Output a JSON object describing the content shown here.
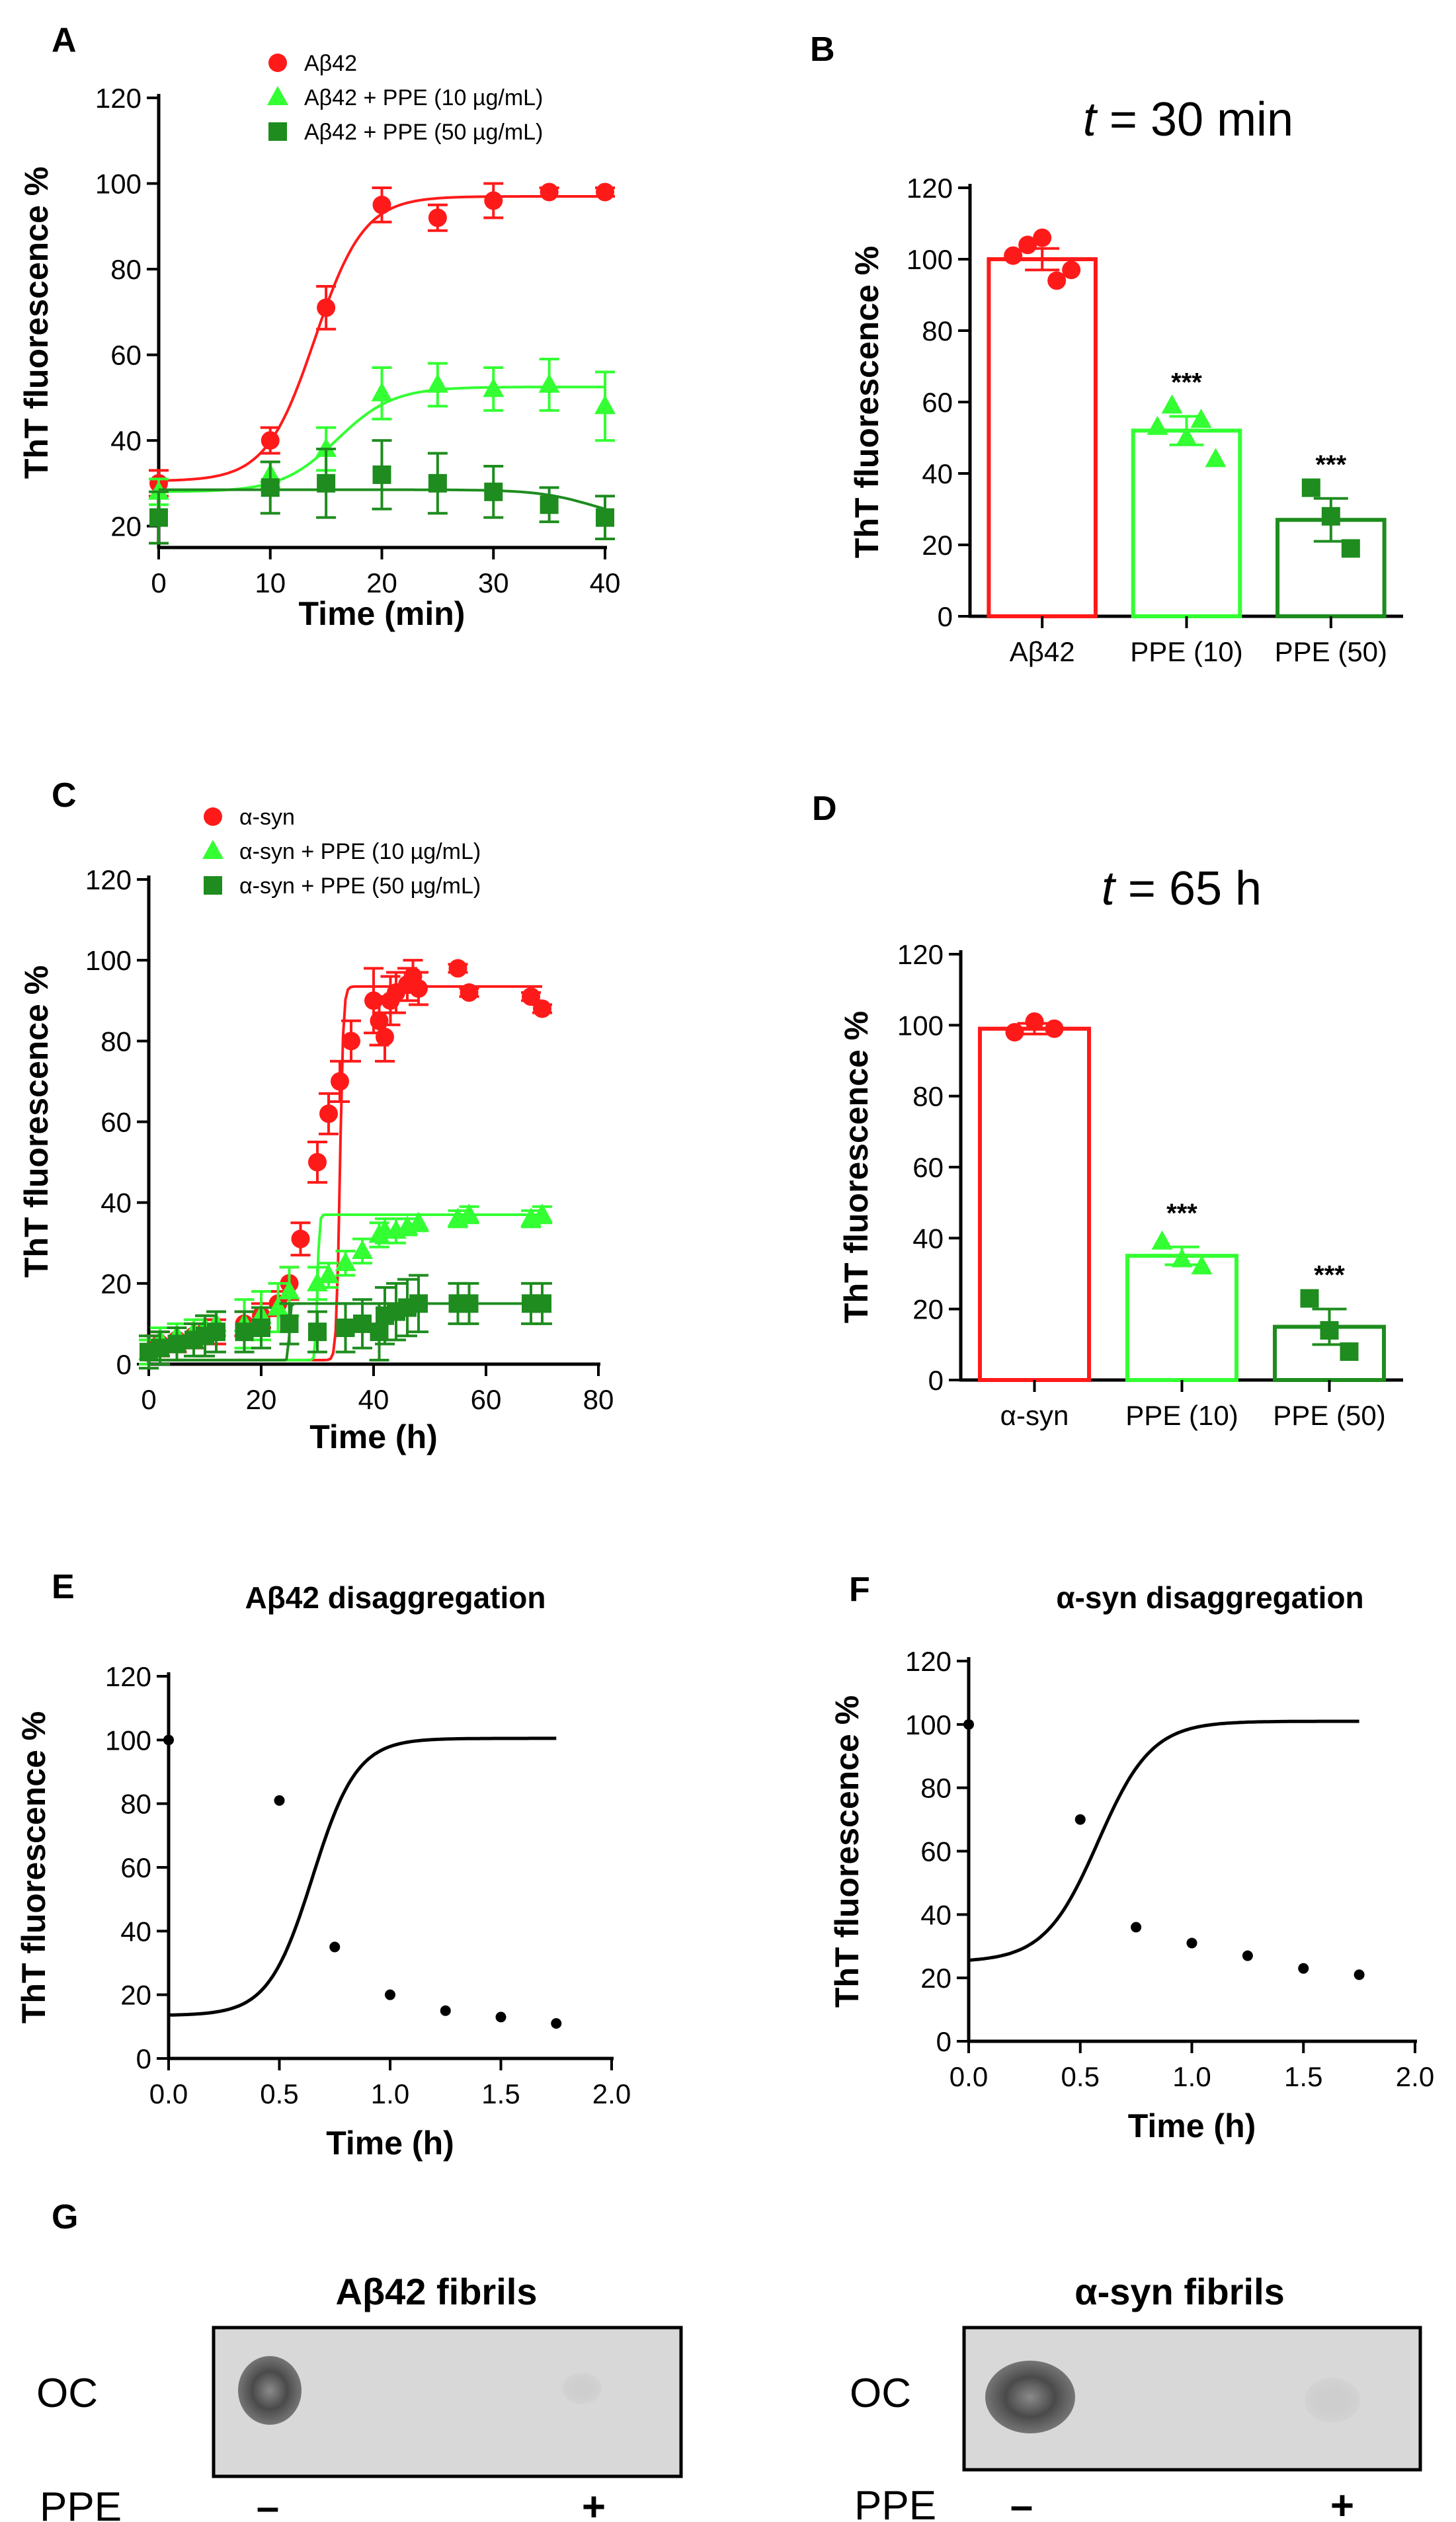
{
  "colors": {
    "red": "#ff1a1a",
    "lightgreen": "#33ff33",
    "darkgreen": "#1e8c1e",
    "black": "#000000"
  },
  "chart_data": [
    {
      "id": "A",
      "type": "line",
      "panel_label": "A",
      "xlabel": "Time (min)",
      "ylabel": "ThT fluorescence %",
      "xlim": [
        0,
        40
      ],
      "ylim": [
        15,
        120
      ],
      "xticks": [
        0,
        10,
        20,
        30,
        40
      ],
      "yticks": [
        20,
        40,
        60,
        80,
        100,
        120
      ],
      "series": [
        {
          "name": "Aβ42",
          "color": "red",
          "marker": "circle",
          "x": [
            0,
            10,
            15,
            20,
            25,
            30,
            35,
            40
          ],
          "y": [
            30,
            40,
            71,
            95,
            92,
            96,
            98,
            98
          ],
          "err": [
            3,
            3,
            5,
            4,
            3,
            4,
            1,
            1
          ],
          "fit": {
            "bottom": 30.5,
            "top": 97,
            "x50": 14,
            "slope": 2.2
          }
        },
        {
          "name": "Aβ42 + PPE (10 µg/mL)",
          "color": "lightgreen",
          "marker": "triangle",
          "x": [
            0,
            10,
            15,
            20,
            25,
            30,
            35,
            40
          ],
          "y": [
            28,
            32,
            38,
            51,
            53,
            52,
            53,
            48
          ],
          "err": [
            3,
            3,
            5,
            6,
            5,
            5,
            6,
            8
          ],
          "fit": {
            "bottom": 28,
            "top": 52.5,
            "x50": 16,
            "slope": 2.5
          }
        },
        {
          "name": "Aβ42 + PPE (50 µg/mL)",
          "color": "darkgreen",
          "marker": "square",
          "x": [
            0,
            10,
            15,
            20,
            25,
            30,
            35,
            40
          ],
          "y": [
            22,
            29,
            30,
            32,
            30,
            28,
            25,
            22
          ],
          "err": [
            6,
            6,
            8,
            8,
            7,
            6,
            4,
            5
          ],
          "fit": {
            "bottom": 28.5,
            "top": 21,
            "x50": 39,
            "slope": 2.5
          }
        }
      ]
    },
    {
      "id": "B",
      "type": "bar",
      "panel_label": "B",
      "title_var": "t",
      "title_rest": " = 30 min",
      "ylabel": "ThT fluorescence %",
      "ylim": [
        0,
        120
      ],
      "yticks": [
        0,
        20,
        40,
        60,
        80,
        100,
        120
      ],
      "categories": [
        "Aβ42",
        "PPE (10)",
        "PPE (50)"
      ],
      "values": [
        100,
        52,
        27
      ],
      "sem": [
        3,
        4,
        6
      ],
      "colors": [
        "red",
        "lightgreen",
        "darkgreen"
      ],
      "markers": [
        "circle",
        "triangle",
        "square"
      ],
      "points": [
        [
          101,
          104,
          106,
          94,
          97
        ],
        [
          53,
          59,
          50,
          55,
          44
        ],
        [
          36,
          28,
          19
        ]
      ],
      "significance": [
        "",
        "***",
        "***"
      ]
    },
    {
      "id": "C",
      "type": "line",
      "panel_label": "C",
      "xlabel": "Time (h)",
      "ylabel": "ThT fluorescence %",
      "xlim": [
        0,
        80
      ],
      "ylim": [
        0,
        120
      ],
      "xticks": [
        0,
        20,
        40,
        60,
        80
      ],
      "yticks": [
        0,
        20,
        40,
        60,
        80,
        100,
        120
      ],
      "series": [
        {
          "name": "α-syn",
          "color": "red",
          "marker": "circle",
          "x": [
            0,
            1,
            2,
            5,
            8,
            10,
            12,
            17,
            20,
            23,
            25,
            27,
            30,
            32,
            34,
            36,
            40,
            41,
            42,
            43,
            44,
            46,
            47,
            48,
            55,
            57,
            68,
            70
          ],
          "y": [
            3,
            4,
            5,
            6,
            7,
            8,
            8,
            10,
            12,
            15,
            20,
            31,
            50,
            62,
            70,
            80,
            90,
            85,
            81,
            90,
            92,
            94,
            96,
            93,
            98,
            92,
            91,
            88
          ],
          "err": [
            3,
            3,
            3,
            3,
            3,
            3,
            3,
            3,
            3,
            3,
            4,
            4,
            5,
            5,
            5,
            5,
            8,
            6,
            6,
            6,
            5,
            4,
            4,
            4,
            1,
            1,
            1,
            1
          ],
          "fit": {
            "bottom": 1,
            "top": 93.5,
            "x50": 34,
            "slope": 0.3
          }
        },
        {
          "name": "α-syn + PPE (10 µg/mL)",
          "color": "lightgreen",
          "marker": "triangle",
          "x": [
            0,
            2,
            5,
            8,
            10,
            12,
            17,
            20,
            23,
            25,
            30,
            32,
            35,
            38,
            41,
            42,
            44,
            46,
            48,
            55,
            57,
            68,
            70
          ],
          "y": [
            3,
            6,
            7,
            8,
            9,
            10,
            10,
            12,
            14,
            18,
            20,
            22,
            25,
            28,
            32,
            33,
            33,
            34,
            35,
            36,
            37,
            36,
            37
          ],
          "err": [
            3,
            3,
            3,
            3,
            3,
            3,
            6,
            6,
            6,
            6,
            4,
            3,
            3,
            3,
            3,
            3,
            3,
            2,
            2,
            2,
            2,
            2,
            2
          ],
          "fit": {
            "bottom": 1,
            "top": 37,
            "x50": 30,
            "slope": 0.17
          }
        },
        {
          "name": "α-syn + PPE (50 µg/mL)",
          "color": "darkgreen",
          "marker": "square",
          "x": [
            0,
            2,
            5,
            8,
            10,
            12,
            17,
            20,
            25,
            30,
            35,
            38,
            41,
            42,
            44,
            46,
            48,
            55,
            57,
            68,
            70
          ],
          "y": [
            3,
            4,
            5,
            6,
            7,
            8,
            8,
            9,
            10,
            8,
            9,
            10,
            8,
            12,
            13,
            14,
            15,
            15,
            15,
            15,
            15
          ],
          "err": [
            4,
            4,
            4,
            4,
            5,
            5,
            5,
            5,
            5,
            5,
            6,
            6,
            7,
            7,
            7,
            7,
            7,
            5,
            5,
            5,
            5
          ],
          "fit": {
            "bottom": 1,
            "top": 15,
            "x50": 25,
            "slope": 0.12
          }
        }
      ]
    },
    {
      "id": "D",
      "type": "bar",
      "panel_label": "D",
      "title_var": "t",
      "title_rest": " = 65 h",
      "ylabel": "ThT fluorescence %",
      "ylim": [
        0,
        120
      ],
      "yticks": [
        0,
        20,
        40,
        60,
        80,
        100,
        120
      ],
      "categories": [
        "α-syn",
        "PPE (10)",
        "PPE (50)"
      ],
      "values": [
        99,
        35,
        15
      ],
      "sem": [
        1.5,
        2.5,
        5
      ],
      "colors": [
        "red",
        "lightgreen",
        "darkgreen"
      ],
      "markers": [
        "circle",
        "triangle",
        "square"
      ],
      "points": [
        [
          98,
          101,
          99
        ],
        [
          39,
          34,
          32
        ],
        [
          23,
          14,
          8
        ]
      ],
      "significance": [
        "",
        "***",
        "***"
      ]
    },
    {
      "id": "E",
      "type": "line",
      "panel_label": "E",
      "title": "Aβ42 disaggregation",
      "xlabel": "Time (h)",
      "ylabel": "ThT fluorescence %",
      "xlim": [
        0,
        2.0
      ],
      "ylim": [
        0,
        120
      ],
      "xticks": [
        0.0,
        0.5,
        1.0,
        1.5,
        2.0
      ],
      "xtick_labels": [
        "0.0",
        "0.5",
        "1.0",
        "1.5",
        "2.0"
      ],
      "yticks": [
        0,
        20,
        40,
        60,
        80,
        100,
        120
      ],
      "series": [
        {
          "name": "Aβ42 disaggregation",
          "color": "black",
          "marker": "dot",
          "x": [
            0,
            0.5,
            0.75,
            1.0,
            1.25,
            1.5,
            1.75
          ],
          "y": [
            100,
            81,
            35,
            20,
            15,
            13,
            11
          ],
          "fit": {
            "bottom": 13.5,
            "top": 100.5,
            "x50": 0.65,
            "slope": 0.1
          }
        }
      ]
    },
    {
      "id": "F",
      "type": "line",
      "panel_label": "F",
      "title": "α-syn disaggregation",
      "xlabel": "Time (h)",
      "ylabel": "ThT fluorescence %",
      "xlim": [
        0,
        2.0
      ],
      "ylim": [
        0,
        120
      ],
      "xticks": [
        0.0,
        0.5,
        1.0,
        1.5,
        2.0
      ],
      "xtick_labels": [
        "0.0",
        "0.5",
        "1.0",
        "1.5",
        "2.0"
      ],
      "yticks": [
        0,
        20,
        40,
        60,
        80,
        100,
        120
      ],
      "series": [
        {
          "name": "α-syn disaggregation",
          "color": "black",
          "marker": "dot",
          "x": [
            0,
            0.5,
            0.75,
            1.0,
            1.25,
            1.5,
            1.75
          ],
          "y": [
            100,
            70,
            36,
            31,
            27,
            23,
            21
          ],
          "fit": {
            "bottom": 25,
            "top": 101,
            "x50": 0.58,
            "slope": 0.12
          }
        }
      ]
    }
  ],
  "blots": {
    "panel_label": "G",
    "row_label": "OC",
    "ppe_label": "PPE",
    "minus": "–",
    "plus": "+",
    "left_title": "Aβ42 fibrils",
    "right_title": "α-syn fibrils"
  }
}
